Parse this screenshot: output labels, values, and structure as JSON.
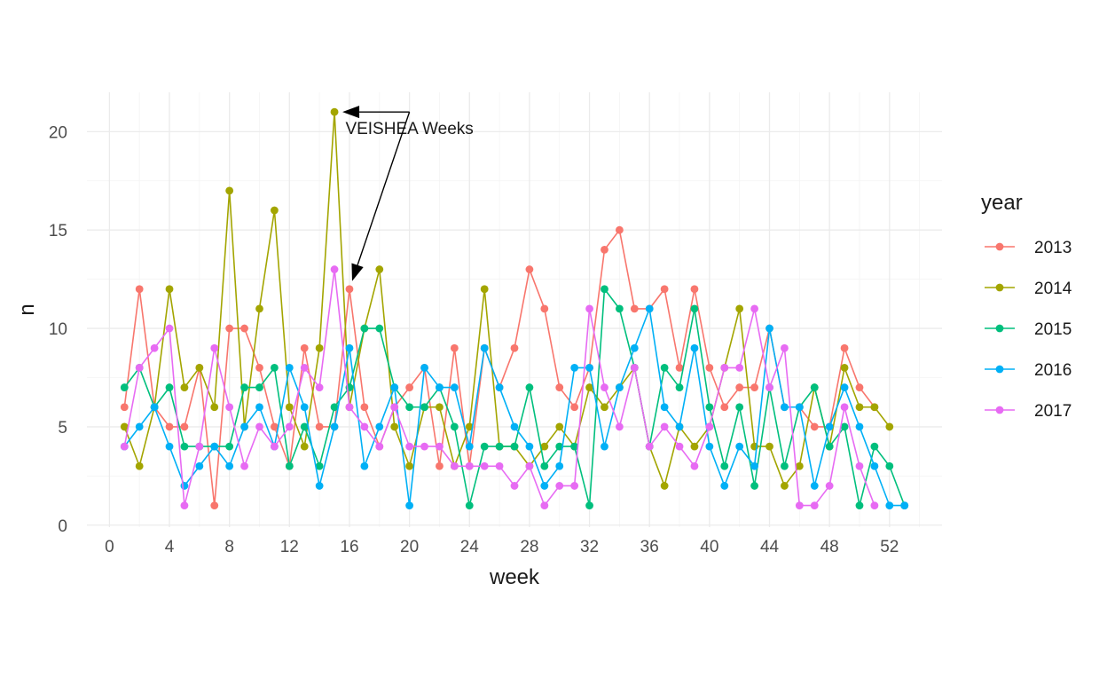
{
  "chart_data": {
    "type": "line",
    "xlabel": "week",
    "ylabel": "n",
    "xlim": [
      -1.5,
      55.5
    ],
    "ylim": [
      -0.1,
      22
    ],
    "x_ticks": [
      0,
      4,
      8,
      12,
      16,
      20,
      24,
      28,
      32,
      36,
      40,
      44,
      48,
      52
    ],
    "y_ticks": [
      0,
      5,
      10,
      15,
      20
    ],
    "grid": true,
    "legend": {
      "title": "year",
      "position": "right"
    },
    "annotation": {
      "text": "VEISHEA Weeks",
      "arrow_targets": [
        [
          15,
          21
        ],
        [
          16,
          12
        ]
      ],
      "label_anchor": [
        20,
        20.2
      ]
    },
    "series": [
      {
        "name": "2013",
        "color": "#F8766D",
        "points": [
          [
            1,
            6
          ],
          [
            2,
            12
          ],
          [
            3,
            6
          ],
          [
            4,
            5
          ],
          [
            5,
            5
          ],
          [
            6,
            8
          ],
          [
            7,
            1
          ],
          [
            8,
            10
          ],
          [
            9,
            10
          ],
          [
            10,
            8
          ],
          [
            11,
            5
          ],
          [
            12,
            3
          ],
          [
            13,
            9
          ],
          [
            14,
            5
          ],
          [
            15,
            5
          ],
          [
            16,
            12
          ],
          [
            17,
            6
          ],
          [
            18,
            4
          ],
          [
            19,
            6
          ],
          [
            20,
            7
          ],
          [
            21,
            8
          ],
          [
            22,
            3
          ],
          [
            23,
            9
          ],
          [
            24,
            3
          ],
          [
            25,
            9
          ],
          [
            26,
            7
          ],
          [
            27,
            9
          ],
          [
            28,
            13
          ],
          [
            29,
            11
          ],
          [
            30,
            7
          ],
          [
            31,
            6
          ],
          [
            32,
            8
          ],
          [
            33,
            14
          ],
          [
            34,
            15
          ],
          [
            35,
            11
          ],
          [
            36,
            11
          ],
          [
            37,
            12
          ],
          [
            38,
            8
          ],
          [
            39,
            12
          ],
          [
            40,
            8
          ],
          [
            41,
            6
          ],
          [
            42,
            7
          ],
          [
            43,
            7
          ],
          [
            44,
            10
          ],
          [
            45,
            6
          ],
          [
            46,
            6
          ],
          [
            47,
            5
          ],
          [
            48,
            5
          ],
          [
            49,
            9
          ],
          [
            50,
            7
          ],
          [
            51,
            6
          ]
        ]
      },
      {
        "name": "2014",
        "color": "#A3A500",
        "points": [
          [
            1,
            5
          ],
          [
            2,
            3
          ],
          [
            3,
            6
          ],
          [
            4,
            12
          ],
          [
            5,
            7
          ],
          [
            6,
            8
          ],
          [
            7,
            6
          ],
          [
            8,
            17
          ],
          [
            9,
            5
          ],
          [
            10,
            11
          ],
          [
            11,
            16
          ],
          [
            12,
            6
          ],
          [
            13,
            4
          ],
          [
            14,
            9
          ],
          [
            15,
            21
          ],
          [
            16,
            6
          ],
          [
            17,
            10
          ],
          [
            18,
            13
          ],
          [
            19,
            5
          ],
          [
            20,
            3
          ],
          [
            21,
            6
          ],
          [
            22,
            6
          ],
          [
            23,
            3
          ],
          [
            24,
            5
          ],
          [
            25,
            12
          ],
          [
            26,
            4
          ],
          [
            27,
            4
          ],
          [
            28,
            3
          ],
          [
            29,
            4
          ],
          [
            30,
            5
          ],
          [
            31,
            4
          ],
          [
            32,
            7
          ],
          [
            33,
            6
          ],
          [
            34,
            7
          ],
          [
            35,
            8
          ],
          [
            36,
            4
          ],
          [
            37,
            2
          ],
          [
            38,
            5
          ],
          [
            39,
            4
          ],
          [
            40,
            5
          ],
          [
            41,
            8
          ],
          [
            42,
            11
          ],
          [
            43,
            4
          ],
          [
            44,
            4
          ],
          [
            45,
            2
          ],
          [
            46,
            3
          ],
          [
            47,
            7
          ],
          [
            48,
            4
          ],
          [
            49,
            8
          ],
          [
            50,
            6
          ],
          [
            51,
            6
          ],
          [
            52,
            5
          ]
        ]
      },
      {
        "name": "2015",
        "color": "#00BF7D",
        "points": [
          [
            1,
            7
          ],
          [
            2,
            8
          ],
          [
            3,
            6
          ],
          [
            4,
            7
          ],
          [
            5,
            4
          ],
          [
            6,
            4
          ],
          [
            7,
            4
          ],
          [
            8,
            4
          ],
          [
            9,
            7
          ],
          [
            10,
            7
          ],
          [
            11,
            8
          ],
          [
            12,
            3
          ],
          [
            13,
            5
          ],
          [
            14,
            3
          ],
          [
            15,
            6
          ],
          [
            16,
            7
          ],
          [
            17,
            10
          ],
          [
            18,
            10
          ],
          [
            19,
            7
          ],
          [
            20,
            6
          ],
          [
            21,
            6
          ],
          [
            22,
            7
          ],
          [
            23,
            5
          ],
          [
            24,
            1
          ],
          [
            25,
            4
          ],
          [
            26,
            4
          ],
          [
            27,
            4
          ],
          [
            28,
            7
          ],
          [
            29,
            3
          ],
          [
            30,
            4
          ],
          [
            31,
            4
          ],
          [
            32,
            1
          ],
          [
            33,
            12
          ],
          [
            34,
            11
          ],
          [
            35,
            8
          ],
          [
            36,
            4
          ],
          [
            37,
            8
          ],
          [
            38,
            7
          ],
          [
            39,
            11
          ],
          [
            40,
            6
          ],
          [
            41,
            3
          ],
          [
            42,
            6
          ],
          [
            43,
            2
          ],
          [
            44,
            7
          ],
          [
            45,
            3
          ],
          [
            46,
            6
          ],
          [
            47,
            7
          ],
          [
            48,
            4
          ],
          [
            49,
            5
          ],
          [
            50,
            1
          ],
          [
            51,
            4
          ],
          [
            52,
            3
          ],
          [
            53,
            1
          ]
        ]
      },
      {
        "name": "2016",
        "color": "#00B0F6",
        "points": [
          [
            1,
            4
          ],
          [
            2,
            5
          ],
          [
            3,
            6
          ],
          [
            4,
            4
          ],
          [
            5,
            2
          ],
          [
            6,
            3
          ],
          [
            7,
            4
          ],
          [
            8,
            3
          ],
          [
            9,
            5
          ],
          [
            10,
            6
          ],
          [
            11,
            4
          ],
          [
            12,
            8
          ],
          [
            13,
            6
          ],
          [
            14,
            2
          ],
          [
            15,
            5
          ],
          [
            16,
            9
          ],
          [
            17,
            3
          ],
          [
            18,
            5
          ],
          [
            19,
            7
          ],
          [
            20,
            1
          ],
          [
            21,
            8
          ],
          [
            22,
            7
          ],
          [
            23,
            7
          ],
          [
            24,
            4
          ],
          [
            25,
            9
          ],
          [
            26,
            7
          ],
          [
            27,
            5
          ],
          [
            28,
            4
          ],
          [
            29,
            2
          ],
          [
            30,
            3
          ],
          [
            31,
            8
          ],
          [
            32,
            8
          ],
          [
            33,
            4
          ],
          [
            34,
            7
          ],
          [
            35,
            9
          ],
          [
            36,
            11
          ],
          [
            37,
            6
          ],
          [
            38,
            5
          ],
          [
            39,
            9
          ],
          [
            40,
            4
          ],
          [
            41,
            2
          ],
          [
            42,
            4
          ],
          [
            43,
            3
          ],
          [
            44,
            10
          ],
          [
            45,
            6
          ],
          [
            46,
            6
          ],
          [
            47,
            2
          ],
          [
            48,
            5
          ],
          [
            49,
            7
          ],
          [
            50,
            5
          ],
          [
            51,
            3
          ],
          [
            52,
            1
          ],
          [
            53,
            1
          ]
        ]
      },
      {
        "name": "2017",
        "color": "#E76BF3",
        "points": [
          [
            1,
            4
          ],
          [
            2,
            8
          ],
          [
            3,
            9
          ],
          [
            4,
            10
          ],
          [
            5,
            1
          ],
          [
            6,
            4
          ],
          [
            7,
            9
          ],
          [
            8,
            6
          ],
          [
            9,
            3
          ],
          [
            10,
            5
          ],
          [
            11,
            4
          ],
          [
            12,
            5
          ],
          [
            13,
            8
          ],
          [
            14,
            7
          ],
          [
            15,
            13
          ],
          [
            16,
            6
          ],
          [
            17,
            5
          ],
          [
            18,
            4
          ],
          [
            19,
            6
          ],
          [
            20,
            4
          ],
          [
            21,
            4
          ],
          [
            22,
            4
          ],
          [
            23,
            3
          ],
          [
            24,
            3
          ],
          [
            25,
            3
          ],
          [
            26,
            3
          ],
          [
            27,
            2
          ],
          [
            28,
            3
          ],
          [
            29,
            1
          ],
          [
            30,
            2
          ],
          [
            31,
            2
          ],
          [
            32,
            11
          ],
          [
            33,
            7
          ],
          [
            34,
            5
          ],
          [
            35,
            8
          ],
          [
            36,
            4
          ],
          [
            37,
            5
          ],
          [
            38,
            4
          ],
          [
            39,
            3
          ],
          [
            40,
            5
          ],
          [
            41,
            8
          ],
          [
            42,
            8
          ],
          [
            43,
            11
          ],
          [
            44,
            7
          ],
          [
            45,
            9
          ],
          [
            46,
            1
          ],
          [
            47,
            1
          ],
          [
            48,
            2
          ],
          [
            49,
            6
          ],
          [
            50,
            3
          ],
          [
            51,
            1
          ]
        ]
      }
    ]
  }
}
